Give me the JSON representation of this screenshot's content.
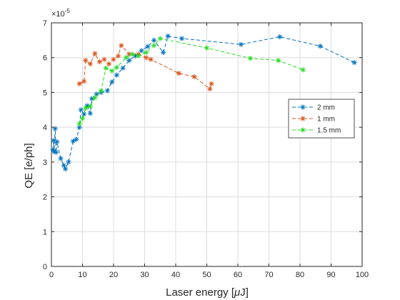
{
  "chart_data": {
    "type": "line",
    "xlabel_prefix": "Laser energy [",
    "xlabel_mu": "μ",
    "xlabel_suffix": "J]",
    "ylabel": "QE [e/ph]",
    "y_exponent_label_base": "×10",
    "y_exponent_label_power": "-5",
    "xlim": [
      0,
      100
    ],
    "ylim": [
      0,
      7
    ],
    "xticks": [
      0,
      10,
      20,
      30,
      40,
      50,
      60,
      70,
      80,
      90,
      100
    ],
    "yticks": [
      0,
      1,
      2,
      3,
      4,
      5,
      6,
      7
    ],
    "grid": true,
    "legend_position": "right",
    "series": [
      {
        "name": "2 mm",
        "color": "#0072BD",
        "points": [
          [
            0.5,
            3.35
          ],
          [
            0.7,
            3.62
          ],
          [
            0.9,
            3.3
          ],
          [
            1.2,
            3.96
          ],
          [
            1.5,
            3.28
          ],
          [
            1.8,
            3.58
          ],
          [
            3,
            3.1
          ],
          [
            4,
            2.9
          ],
          [
            4.5,
            2.8
          ],
          [
            5.5,
            3.0
          ],
          [
            7,
            3.6
          ],
          [
            8,
            3.65
          ],
          [
            9,
            4.0
          ],
          [
            9.5,
            4.5
          ],
          [
            10.5,
            4.38
          ],
          [
            11.5,
            4.62
          ],
          [
            12.5,
            4.4
          ],
          [
            13,
            4.82
          ],
          [
            14.5,
            4.95
          ],
          [
            16,
            5.0
          ],
          [
            18,
            5.05
          ],
          [
            19.5,
            5.3
          ],
          [
            21,
            5.5
          ],
          [
            23,
            5.7
          ],
          [
            25,
            5.92
          ],
          [
            27,
            6.05
          ],
          [
            29,
            6.2
          ],
          [
            31,
            6.32
          ],
          [
            33,
            6.5
          ],
          [
            36,
            6.15
          ],
          [
            37.5,
            6.62
          ],
          [
            42,
            6.55
          ],
          [
            61,
            6.38
          ],
          [
            73.5,
            6.6
          ],
          [
            86.5,
            6.33
          ],
          [
            97.5,
            5.86
          ]
        ]
      },
      {
        "name": "1 mm",
        "color": "#D95319",
        "points": [
          [
            9,
            5.25
          ],
          [
            10.5,
            5.32
          ],
          [
            11,
            5.92
          ],
          [
            12.5,
            5.82
          ],
          [
            14,
            6.12
          ],
          [
            15.5,
            5.88
          ],
          [
            17,
            5.95
          ],
          [
            18.5,
            5.82
          ],
          [
            20,
            5.95
          ],
          [
            21.5,
            6.05
          ],
          [
            22.5,
            6.35
          ],
          [
            25,
            6.1
          ],
          [
            28,
            6.1
          ],
          [
            30.5,
            6.0
          ],
          [
            32,
            5.95
          ],
          [
            41,
            5.55
          ],
          [
            46,
            5.45
          ],
          [
            51,
            5.1
          ],
          [
            51.5,
            5.25
          ]
        ]
      },
      {
        "name": "1.5 mm",
        "color": "#22DD22",
        "points": [
          [
            9,
            4.1
          ],
          [
            10,
            4.25
          ],
          [
            11,
            4.55
          ],
          [
            12.5,
            4.6
          ],
          [
            14,
            4.85
          ],
          [
            16,
            5.05
          ],
          [
            17.5,
            5.7
          ],
          [
            19.5,
            5.62
          ],
          [
            21,
            5.72
          ],
          [
            24,
            6.0
          ],
          [
            26,
            6.1
          ],
          [
            28,
            6.05
          ],
          [
            30.5,
            6.15
          ],
          [
            33,
            6.35
          ],
          [
            35,
            6.55
          ],
          [
            50,
            6.28
          ],
          [
            64,
            5.98
          ],
          [
            73,
            5.92
          ],
          [
            81,
            5.65
          ]
        ]
      }
    ]
  }
}
